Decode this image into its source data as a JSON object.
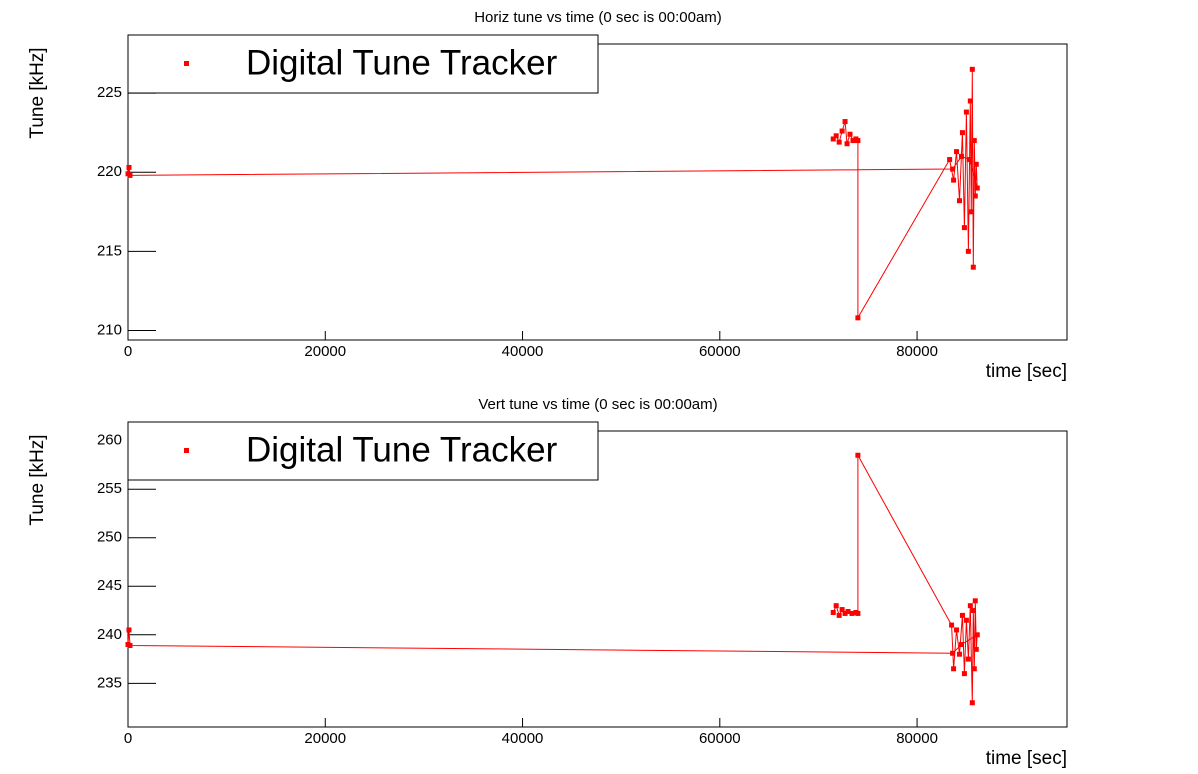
{
  "chart_data": [
    {
      "type": "line",
      "title": "Horiz tune vs time (0 sec is 00:00am)",
      "x_label": "time [sec]",
      "y_label": "Tune [kHz]",
      "x": [
        71500,
        71800,
        72100,
        72400,
        72700,
        72900,
        73200,
        73500,
        73800,
        74000,
        74000,
        83300,
        83700,
        84000,
        84300,
        84600,
        84800,
        85000,
        85200,
        85400,
        85500,
        85600,
        85700,
        85800,
        85900,
        86000,
        86100,
        85300,
        84500,
        83600,
        200,
        100,
        0
      ],
      "series": [
        {
          "name": "Digital Tune Tracker",
          "color": "#ff0000",
          "values": [
            222.1,
            222.3,
            221.9,
            222.6,
            223.2,
            221.8,
            222.4,
            222.0,
            222.1,
            222.0,
            210.8,
            220.8,
            219.5,
            221.3,
            218.2,
            222.5,
            216.5,
            223.8,
            215.0,
            224.5,
            217.5,
            226.5,
            214.0,
            222.0,
            218.5,
            220.5,
            219.0,
            220.8,
            221.0,
            220.2,
            219.8,
            220.3,
            219.9
          ]
        }
      ],
      "xlim": [
        0,
        95200
      ],
      "xticks": [
        0,
        20000,
        40000,
        60000,
        80000
      ],
      "ylim": [
        209.4,
        228.1
      ],
      "yticks": [
        210,
        215,
        220,
        225
      ]
    },
    {
      "type": "line",
      "title": "Vert tune vs time (0 sec is 00:00am)",
      "x_label": "time [sec]",
      "y_label": "Tune [kHz]",
      "x": [
        71500,
        71800,
        72100,
        72400,
        72700,
        73000,
        73400,
        73800,
        74000,
        74000,
        83500,
        83700,
        84000,
        84300,
        84600,
        84800,
        85000,
        85200,
        85400,
        85600,
        85700,
        85800,
        85900,
        86000,
        86100,
        84500,
        83600,
        200,
        100,
        0
      ],
      "series": [
        {
          "name": "Digital Tune Tracker",
          "color": "#ff0000",
          "values": [
            242.3,
            243.0,
            242.0,
            242.6,
            242.2,
            242.4,
            242.2,
            242.3,
            242.2,
            258.5,
            241.0,
            236.5,
            240.5,
            238.0,
            242.0,
            236.0,
            241.5,
            237.5,
            243.0,
            233.0,
            242.5,
            236.5,
            243.5,
            238.5,
            240.0,
            239.0,
            238.1,
            238.9,
            240.5,
            239.0
          ]
        }
      ],
      "xlim": [
        0,
        95200
      ],
      "xticks": [
        0,
        20000,
        40000,
        60000,
        80000
      ],
      "ylim": [
        230.5,
        261.0
      ],
      "yticks": [
        235,
        240,
        245,
        250,
        255,
        260
      ]
    }
  ]
}
